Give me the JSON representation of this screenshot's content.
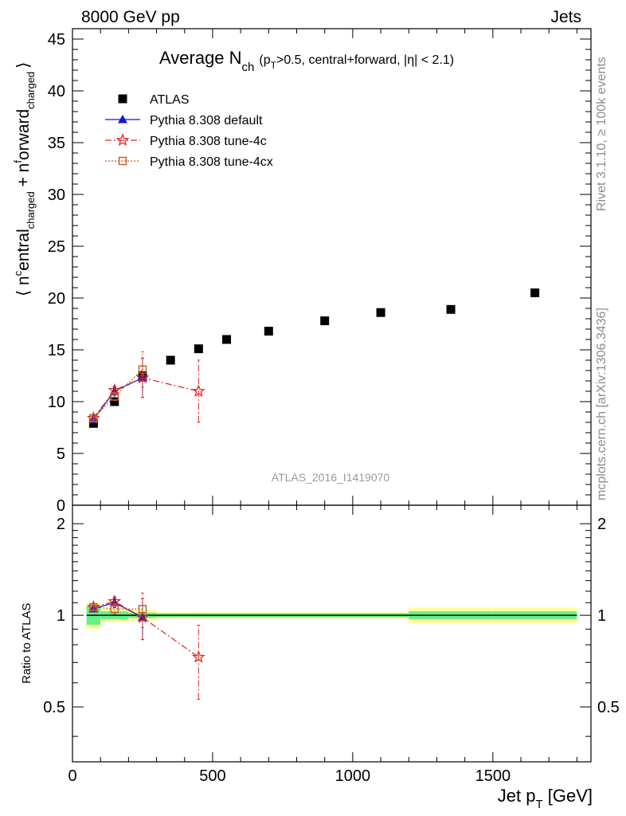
{
  "header": {
    "left": "8000 GeV pp",
    "right": "Jets"
  },
  "side_labels": {
    "rivet": "Rivet 3.1.10, ≥ 100k events",
    "mcplots": "mcplots.cern.ch [arXiv:1306.3436]"
  },
  "chart_data": {
    "type": "scatter",
    "title": {
      "main": "Average N",
      "sub": "ch",
      "cond_a": "(p",
      "cond_sub": "T",
      "cond_b": ">0.5, central+forward, |η| < 2.1)"
    },
    "analysis_id": "ATLAS_2016_I1419070",
    "xlabel": {
      "main": "Jet p",
      "sub": "T",
      "unit": " [GeV]"
    },
    "ylabel": {
      "open": "⟨ n",
      "sup1": "c",
      "mid1": "entral",
      "sub1": "charged",
      "plus": " + n",
      "sup2": "f",
      "mid2": "orward",
      "sub2": "charged",
      "close": "⟩"
    },
    "ratio_ylabel": "Ratio to ATLAS",
    "xlim": [
      0,
      1850
    ],
    "ylim": [
      0,
      46
    ],
    "ratio_ylim": [
      0.33,
      2.3
    ],
    "x_ticks": [
      "0",
      "500",
      "1000",
      "1500"
    ],
    "x_tick_values": [
      0,
      500,
      1000,
      1500
    ],
    "y_ticks": [
      "0",
      "5",
      "10",
      "15",
      "20",
      "25",
      "30",
      "35",
      "40",
      "45"
    ],
    "y_tick_values": [
      0,
      5,
      10,
      15,
      20,
      25,
      30,
      35,
      40,
      45
    ],
    "ratio_ticks": [
      "0.5",
      "1",
      "2"
    ],
    "ratio_tick_values": [
      0.5,
      1,
      2
    ],
    "data": {
      "name": "ATLAS",
      "x": [
        75,
        150,
        250,
        350,
        450,
        550,
        700,
        900,
        1100,
        1350,
        1650
      ],
      "y": [
        7.9,
        10.0,
        12.5,
        14.0,
        15.1,
        16.0,
        16.8,
        17.8,
        18.6,
        18.9,
        20.5
      ],
      "x_edges": [
        [
          50,
          100
        ],
        [
          100,
          200
        ],
        [
          200,
          300
        ],
        [
          300,
          400
        ],
        [
          400,
          500
        ],
        [
          500,
          600
        ],
        [
          600,
          800
        ],
        [
          800,
          1000
        ],
        [
          1000,
          1200
        ],
        [
          1200,
          1500
        ],
        [
          1500,
          1800
        ]
      ],
      "band_inner": [
        0.07,
        0.03,
        0.02,
        0.015,
        0.015,
        0.015,
        0.015,
        0.015,
        0.015,
        0.03,
        0.03
      ],
      "band_outer": [
        0.1,
        0.05,
        0.04,
        0.025,
        0.025,
        0.025,
        0.025,
        0.025,
        0.025,
        0.06,
        0.06
      ]
    },
    "series": [
      {
        "name": "Pythia 8.308 default",
        "color": "#1414cc",
        "marker": "triangle",
        "x": [
          75,
          150,
          250
        ],
        "y": [
          8.3,
          11.0,
          12.3
        ],
        "yerr": [
          0.15,
          0.4,
          1.9
        ]
      },
      {
        "name": "Pythia 8.308 tune-4c",
        "color": "#e02828",
        "marker": "star",
        "x": [
          75,
          150,
          250,
          450
        ],
        "y": [
          8.4,
          11.1,
          12.3,
          11.0
        ],
        "yerr": [
          0.15,
          0.4,
          1.9,
          3.0
        ]
      },
      {
        "name": "Pythia 8.308 tune-4cx",
        "color": "#c25a1e",
        "marker": "open-square",
        "x": [
          75,
          150,
          250
        ],
        "y": [
          8.4,
          10.5,
          13.1
        ],
        "yerr": [
          0.15,
          0.4,
          1.7
        ]
      }
    ],
    "legend_placement": "top-left",
    "grid": false
  }
}
